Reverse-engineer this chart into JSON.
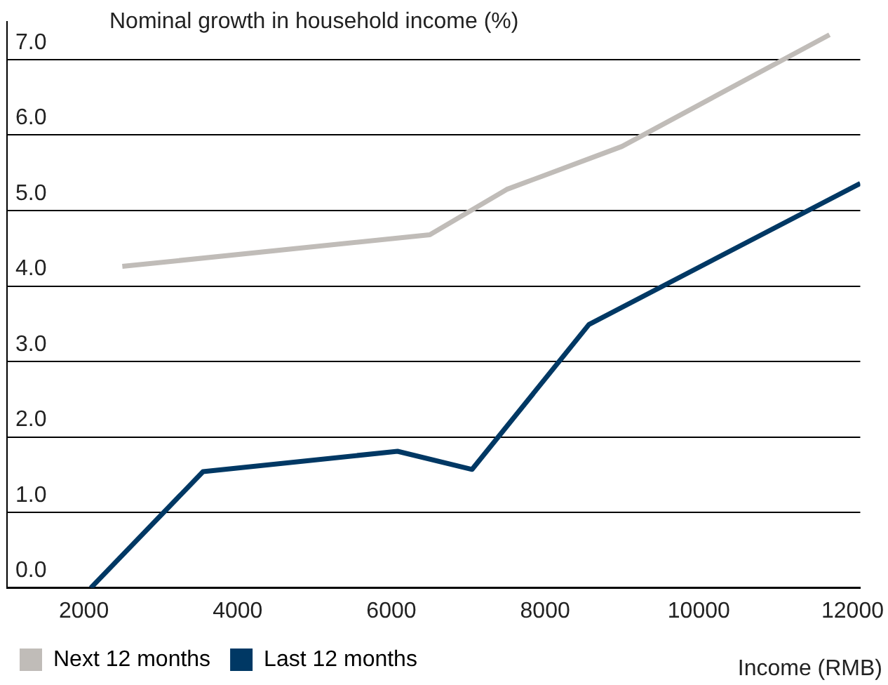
{
  "chart_data": {
    "type": "line",
    "ylabel": "Nominal growth in household income (%)",
    "xlabel": "Income (RMB)",
    "xlim": [
      1000,
      12100
    ],
    "xticks": [
      2000,
      4000,
      6000,
      8000,
      10000,
      12000
    ],
    "ylim": [
      0,
      7.5
    ],
    "yticks": [
      {
        "value": 0,
        "label": "0.0"
      },
      {
        "value": 1,
        "label": "1.0"
      },
      {
        "value": 2,
        "label": "2.0"
      },
      {
        "value": 3,
        "label": "3.0"
      },
      {
        "value": 4,
        "label": "4.0"
      },
      {
        "value": 5,
        "label": "5.0"
      },
      {
        "value": 6,
        "label": "6.0"
      },
      {
        "value": 7,
        "label": "7.0"
      }
    ],
    "grid": "y",
    "legend": "bottom left",
    "marker": "none",
    "line_style": "solid",
    "series": [
      {
        "name": "Next 12 months",
        "color": "#c0bcb8",
        "x": [
          2500,
          6500,
          7500,
          9000,
          11700
        ],
        "values": [
          4.26,
          4.68,
          5.28,
          5.85,
          7.33
        ]
      },
      {
        "name": "Last 12 months",
        "color": "#003864",
        "x": [
          2090,
          3550,
          6080,
          7050,
          8570,
          12100
        ],
        "values": [
          0,
          1.54,
          1.81,
          1.57,
          3.49,
          5.36
        ]
      }
    ]
  }
}
